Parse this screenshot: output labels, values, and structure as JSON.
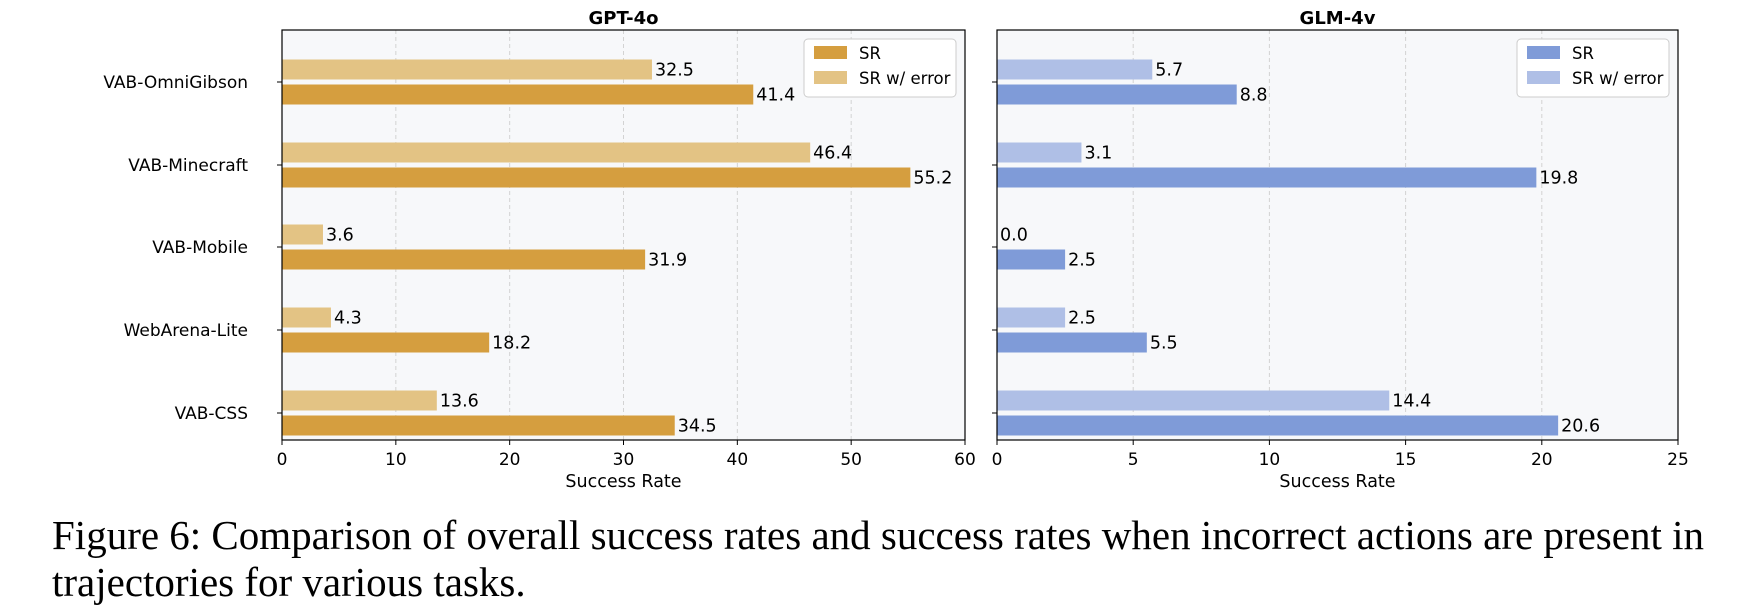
{
  "chart_data": [
    {
      "type": "bar",
      "orientation": "horizontal",
      "title": "GPT-4o",
      "xlabel": "Success Rate",
      "ylabel": "",
      "xlim": [
        0,
        60
      ],
      "xticks": [
        0,
        10,
        20,
        30,
        40,
        50,
        60
      ],
      "categories": [
        "VAB-OmniGibson",
        "VAB-Minecraft",
        "VAB-Mobile",
        "WebArena-Lite",
        "VAB-CSS"
      ],
      "show_category_labels": true,
      "series": [
        {
          "name": "SR",
          "color": "#D59E3F",
          "values": [
            41.4,
            55.2,
            31.9,
            18.2,
            34.5
          ]
        },
        {
          "name": "SR w/ error",
          "color": "#E3C384",
          "values": [
            32.5,
            46.4,
            3.6,
            4.3,
            13.6
          ]
        }
      ],
      "grid": "vertical dashed",
      "legend": "top-right",
      "background": "#F7F8FA"
    },
    {
      "type": "bar",
      "orientation": "horizontal",
      "title": "GLM-4v",
      "xlabel": "Success Rate",
      "ylabel": "",
      "xlim": [
        0,
        25
      ],
      "xticks": [
        0,
        5,
        10,
        15,
        20,
        25
      ],
      "categories": [
        "VAB-OmniGibson",
        "VAB-Minecraft",
        "VAB-Mobile",
        "WebArena-Lite",
        "VAB-CSS"
      ],
      "show_category_labels": false,
      "series": [
        {
          "name": "SR",
          "color": "#7F9BD8",
          "values": [
            8.8,
            19.8,
            2.5,
            5.5,
            20.6
          ]
        },
        {
          "name": "SR w/ error",
          "color": "#AFBFE6",
          "values": [
            5.7,
            3.1,
            0.0,
            2.5,
            14.4
          ]
        }
      ],
      "grid": "vertical dashed",
      "legend": "top-right",
      "background": "#F7F8FA"
    }
  ],
  "caption": "Figure 6: Comparison of overall success rates and success rates when incorrect actions are present in trajectories for various tasks."
}
